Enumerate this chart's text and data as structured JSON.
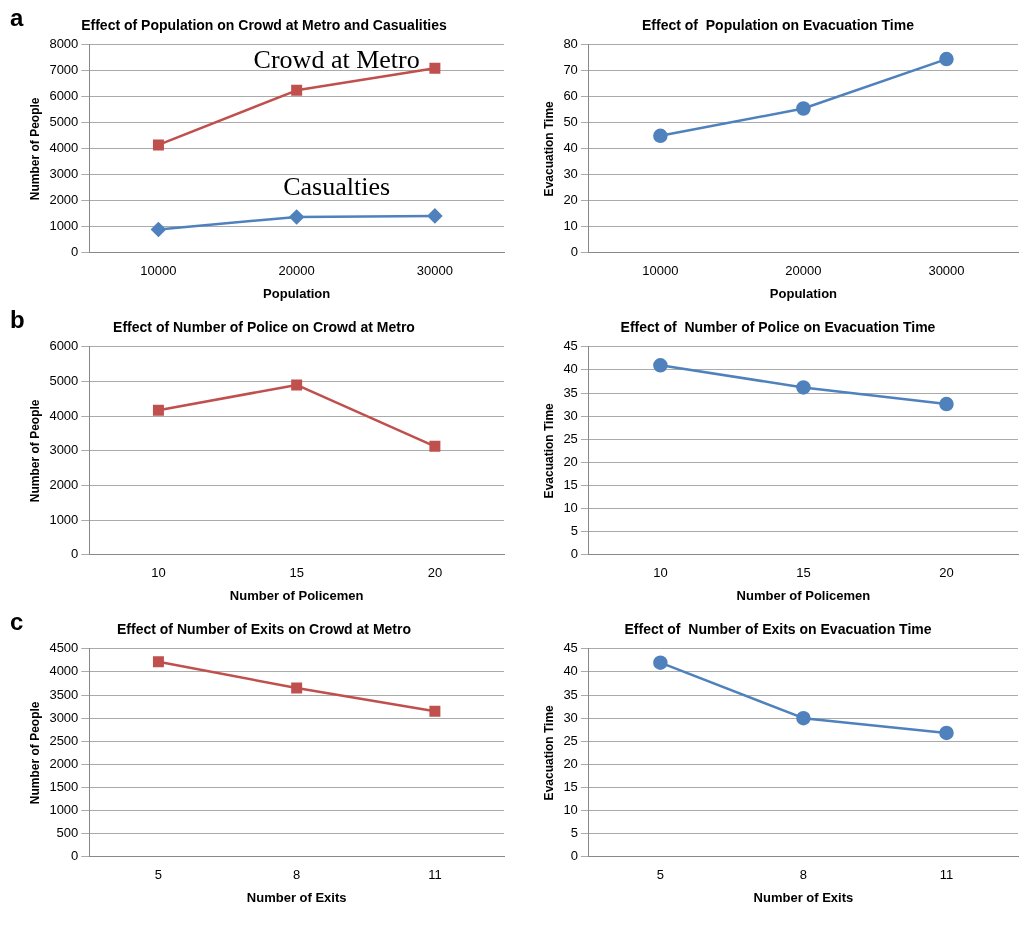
{
  "chart_data": [
    {
      "type": "line",
      "title": "Effect of Population on Crowd at Metro and Casualities",
      "xlabel": "Population",
      "ylabel": "Number of People",
      "annotations": [
        "a"
      ],
      "categories": [
        "10000",
        "20000",
        "30000"
      ],
      "ylim": [
        0,
        8000
      ],
      "yticks": [
        0,
        1000,
        2000,
        3000,
        4000,
        5000,
        6000,
        7000,
        8000
      ],
      "grid": "y",
      "marker": "square",
      "series": [
        {
          "name": "Crowd at Metro",
          "color": "#c0504d",
          "values": [
            4150,
            6250,
            7100
          ]
        },
        {
          "name": "Casualties",
          "color": "#4f81bd",
          "marker": "diamond",
          "values": [
            900,
            1380,
            1420
          ]
        }
      ]
    },
    {
      "type": "line",
      "title": "Effect of  Population on Evacuation Time",
      "xlabel": "Population",
      "ylabel": "Evacuation Time",
      "categories": [
        "10000",
        "20000",
        "30000"
      ],
      "ylim": [
        0,
        80
      ],
      "yticks": [
        0,
        10,
        20,
        30,
        40,
        50,
        60,
        70,
        80
      ],
      "grid": "y",
      "marker": "circle",
      "series": [
        {
          "color": "#4f81bd",
          "values": [
            45,
            55.5,
            74.5
          ]
        }
      ]
    },
    {
      "type": "line",
      "title": "Effect of Number of Police on Crowd at Metro",
      "xlabel": "Number of Policemen",
      "ylabel": "Number of People",
      "annotations": [
        "b"
      ],
      "categories": [
        "10",
        "15",
        "20"
      ],
      "ylim": [
        0,
        6000
      ],
      "yticks": [
        0,
        1000,
        2000,
        3000,
        4000,
        5000,
        6000
      ],
      "grid": "y",
      "marker": "square",
      "series": [
        {
          "color": "#c0504d",
          "values": [
            4170,
            4900,
            3130
          ]
        }
      ]
    },
    {
      "type": "line",
      "title": "Effect of  Number of Police on Evacuation Time",
      "xlabel": "Number of Policemen",
      "ylabel": "Evacuation Time",
      "categories": [
        "10",
        "15",
        "20"
      ],
      "ylim": [
        0,
        45
      ],
      "yticks": [
        0,
        5,
        10,
        15,
        20,
        25,
        30,
        35,
        40,
        45
      ],
      "grid": "y",
      "marker": "circle",
      "series": [
        {
          "color": "#4f81bd",
          "values": [
            41,
            36.2,
            32.6
          ]
        }
      ]
    },
    {
      "type": "line",
      "title": "Effect of Number of Exits on Crowd at Metro",
      "xlabel": "Number of Exits",
      "ylabel": "Number of People",
      "annotations": [
        "c"
      ],
      "categories": [
        "5",
        "8",
        "11"
      ],
      "ylim": [
        0,
        4500
      ],
      "yticks": [
        0,
        500,
        1000,
        1500,
        2000,
        2500,
        3000,
        3500,
        4000,
        4500
      ],
      "grid": "y",
      "marker": "square",
      "series": [
        {
          "color": "#c0504d",
          "values": [
            4220,
            3650,
            3150
          ]
        }
      ]
    },
    {
      "type": "line",
      "title": "Effect of  Number of Exits on Evacuation Time",
      "xlabel": "Number of Exits",
      "ylabel": "Evacuation Time",
      "categories": [
        "5",
        "8",
        "11"
      ],
      "ylim": [
        0,
        45
      ],
      "yticks": [
        0,
        5,
        10,
        15,
        20,
        25,
        30,
        35,
        40,
        45
      ],
      "grid": "y",
      "marker": "circle",
      "series": [
        {
          "color": "#4f81bd",
          "values": [
            42,
            30,
            26.8
          ]
        }
      ]
    }
  ]
}
